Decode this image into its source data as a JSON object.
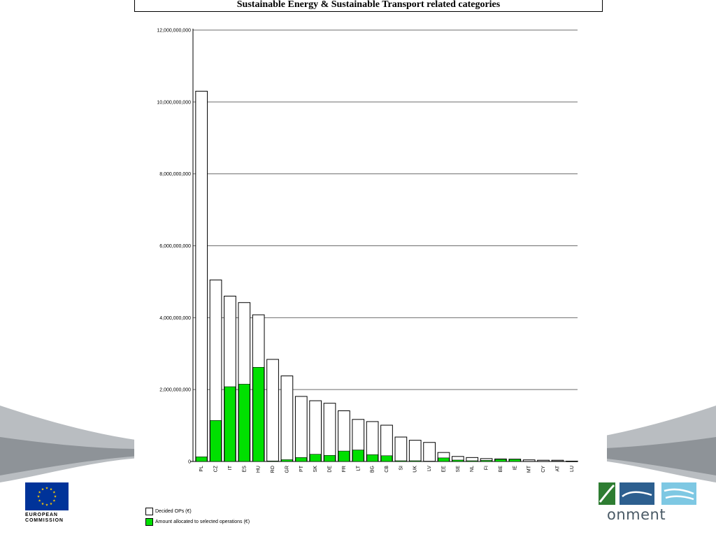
{
  "slide": {
    "title": "Sustainable Energy & Sustainable Transport related categories",
    "logo_left_line1": "EUROPEAN",
    "logo_left_line2": "COMMISSION",
    "logo_right_text": "onment"
  },
  "colors": {
    "allocated": "#00e000",
    "decided": "#ffffff",
    "bar_stroke": "#000000",
    "gridline": "#6e6e6e",
    "eu_blue": "#003399",
    "eu_gold": "#ffcc00",
    "swoosh": "#9aa0a6",
    "env_green": "#2e7d32",
    "env_blue": "#2d5f8f",
    "env_light": "#7ec8e3"
  },
  "chart_data": {
    "type": "bar",
    "categories": [
      "PL",
      "CZ",
      "IT",
      "ES",
      "HU",
      "RO",
      "GR",
      "PT",
      "SK",
      "DE",
      "FR",
      "LT",
      "BG",
      "CB",
      "SI",
      "UK",
      "LV",
      "EE",
      "SE",
      "NL",
      "FI",
      "BE",
      "IE",
      "MT",
      "CY",
      "AT",
      "LU"
    ],
    "series": [
      {
        "name": "Decided OPs (€)",
        "values": [
          10300000000,
          5050000000,
          4600000000,
          4420000000,
          4080000000,
          2840000000,
          2380000000,
          1810000000,
          1690000000,
          1620000000,
          1410000000,
          1170000000,
          1110000000,
          1010000000,
          680000000,
          590000000,
          530000000,
          250000000,
          140000000,
          110000000,
          80000000,
          70000000,
          65000000,
          45000000,
          35000000,
          35000000,
          10000000
        ]
      },
      {
        "name": "Amount allocated to selected operations (€)",
        "values": [
          130000000,
          1140000000,
          2080000000,
          2150000000,
          2620000000,
          15000000,
          50000000,
          110000000,
          200000000,
          170000000,
          290000000,
          320000000,
          190000000,
          160000000,
          20000000,
          20000000,
          10000000,
          100000000,
          40000000,
          20000000,
          30000000,
          60000000,
          60000000,
          5000000,
          5000000,
          10000000,
          2000000
        ]
      }
    ],
    "stacking": "overlay",
    "yticks": [
      "12,000,000,000",
      "10,000,000,000",
      "8,000,000,000",
      "6,000,000,000",
      "4,000,000,000",
      "2,000,000,000",
      "0"
    ],
    "ylim": [
      0,
      12000000000
    ],
    "grid": true,
    "legend_placement": "bottom-left"
  }
}
